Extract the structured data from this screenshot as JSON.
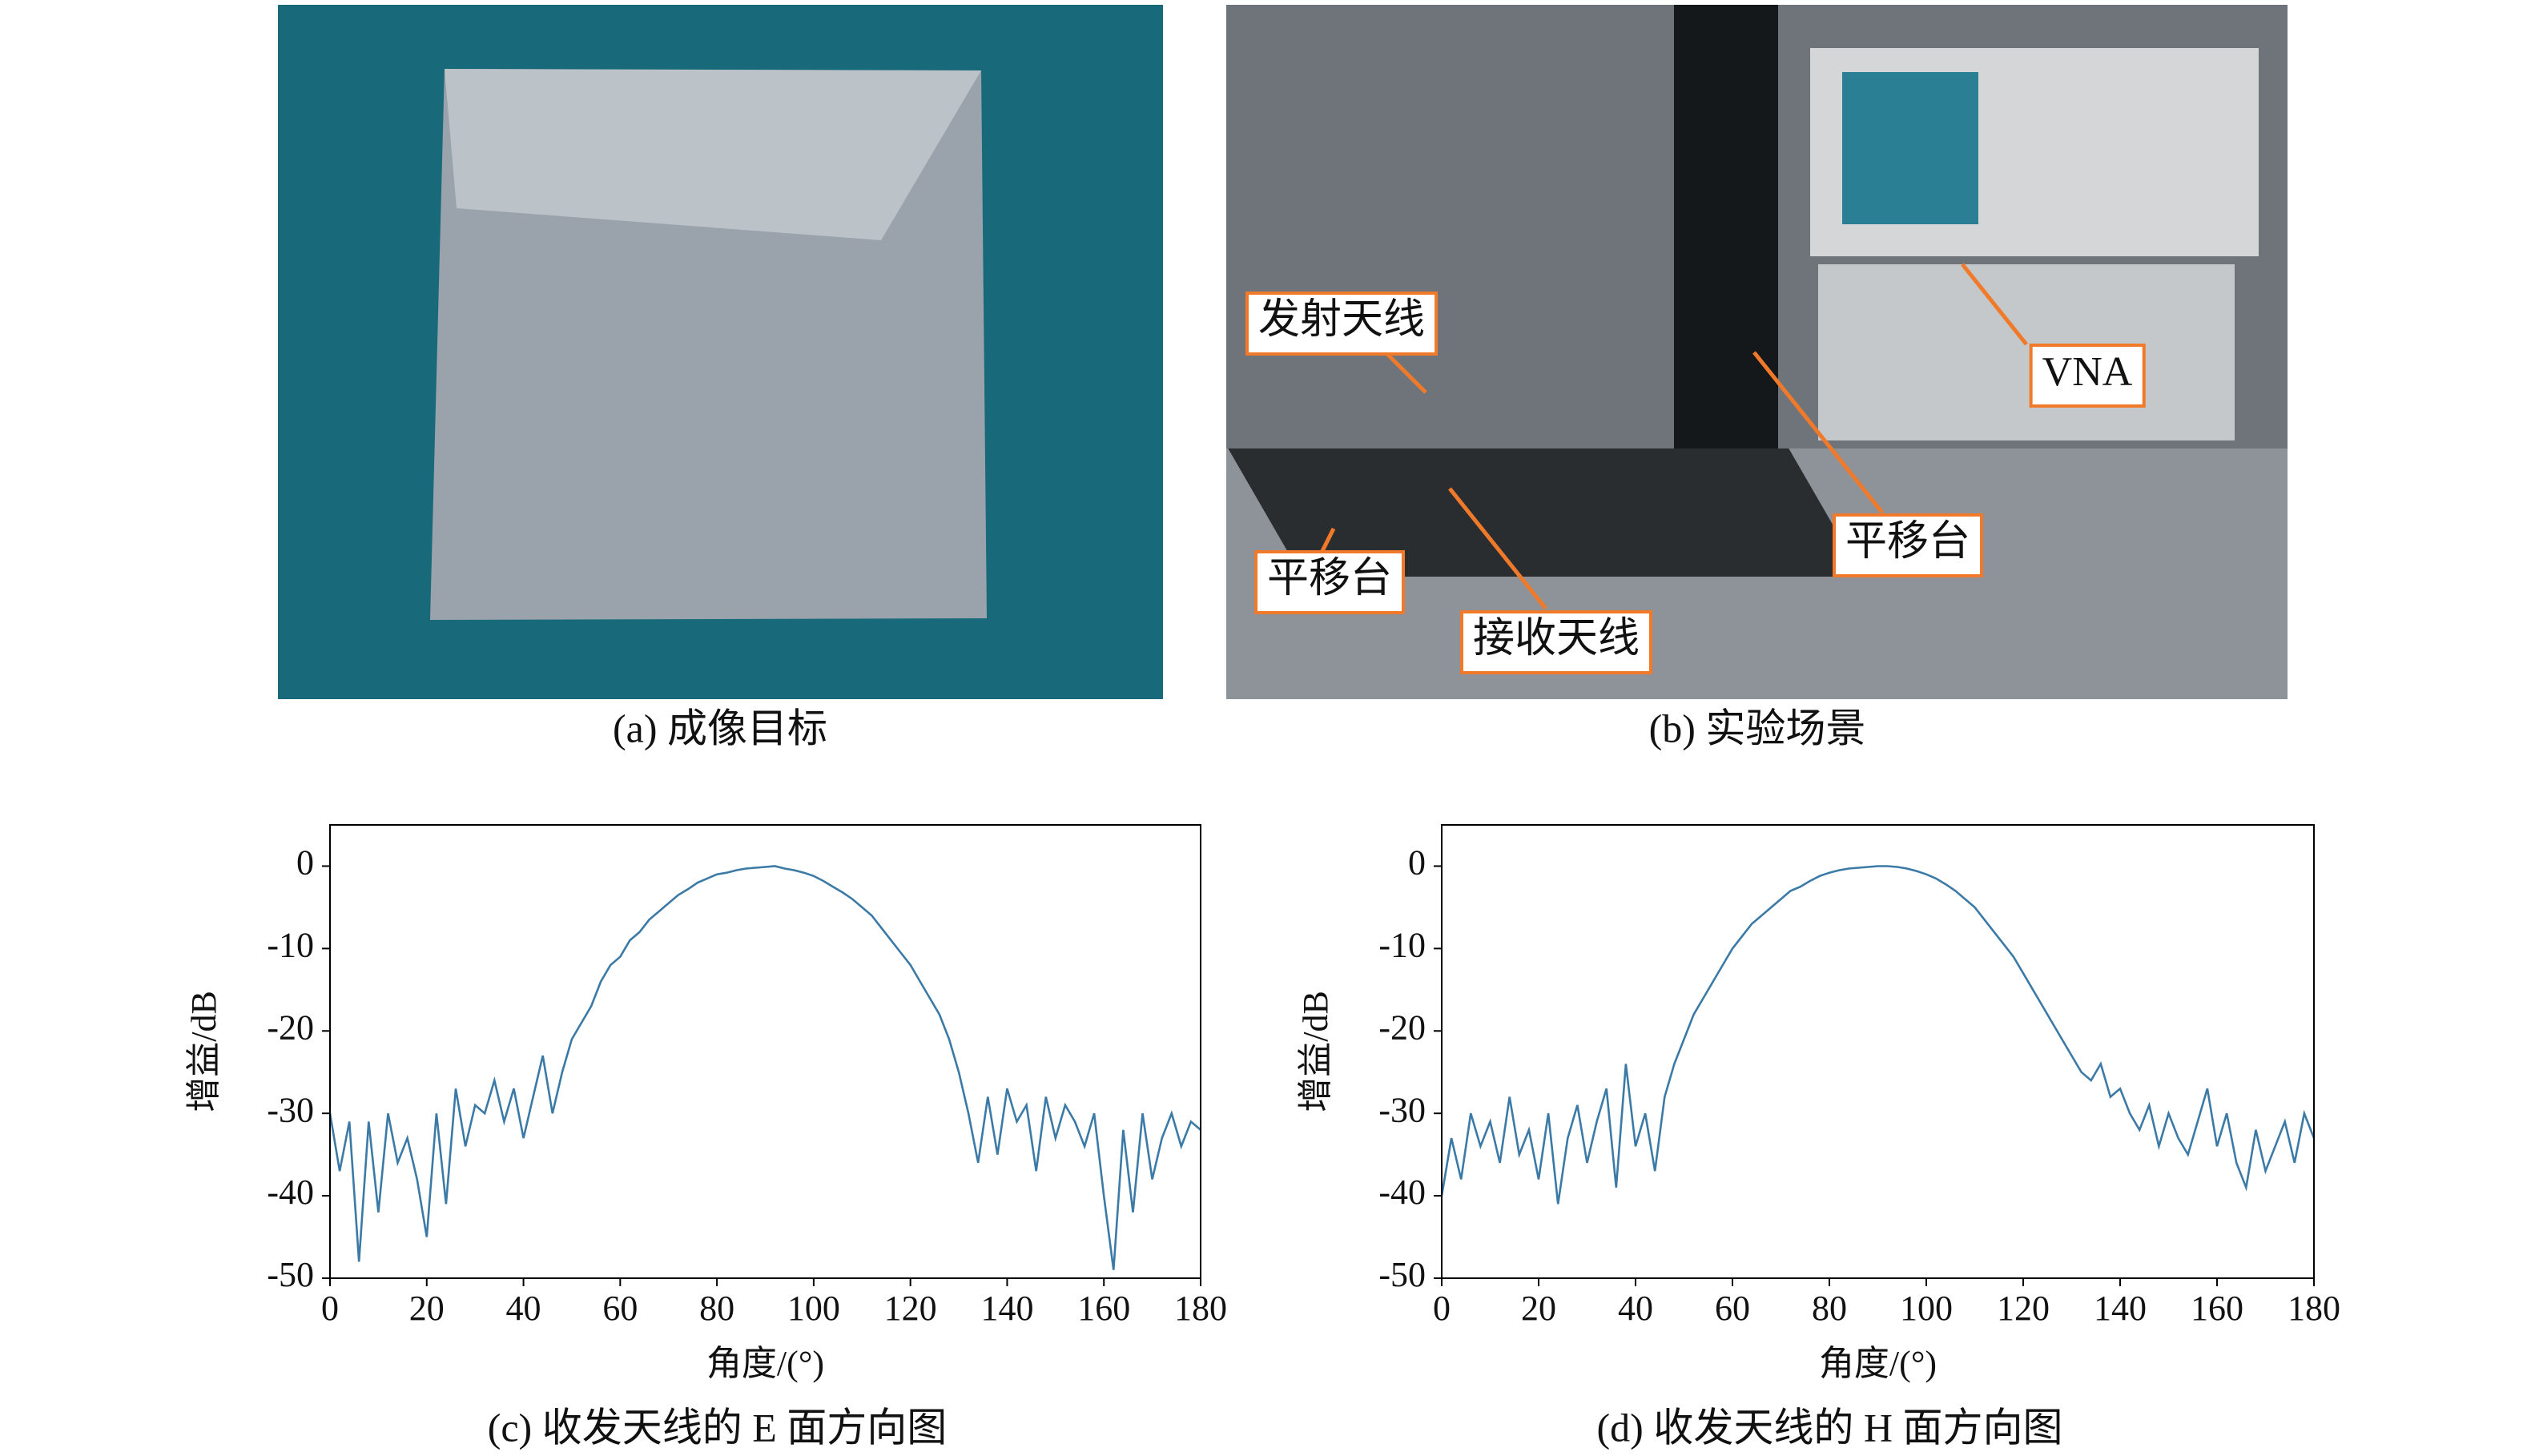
{
  "captions": [
    "(a) 成像目标",
    "(b) 实验场景"
  ],
  "photo_b_labels": [
    "发射天线",
    "VNA",
    "平移台",
    "平移台",
    "接收天线"
  ],
  "chart_data": [
    {
      "type": "line",
      "caption": "(c) 收发天线的 E 面方向图",
      "x_label": "角度/(°)",
      "y_label": "增益/dB",
      "color": "#3b7aa6",
      "x": [
        0,
        2,
        4,
        6,
        8,
        10,
        12,
        14,
        16,
        18,
        20,
        22,
        24,
        26,
        28,
        30,
        32,
        34,
        36,
        38,
        40,
        42,
        44,
        46,
        48,
        50,
        52,
        54,
        56,
        58,
        60,
        62,
        64,
        66,
        68,
        70,
        72,
        74,
        76,
        78,
        80,
        82,
        84,
        86,
        88,
        90,
        92,
        94,
        96,
        98,
        100,
        102,
        104,
        106,
        108,
        110,
        112,
        114,
        116,
        118,
        120,
        122,
        124,
        126,
        128,
        130,
        132,
        134,
        136,
        138,
        140,
        142,
        144,
        146,
        148,
        150,
        152,
        154,
        156,
        158,
        160,
        162,
        164,
        166,
        168,
        170,
        172,
        174,
        176,
        178,
        180
      ],
      "values": [
        -30,
        -37,
        -31,
        -48,
        -31,
        -42,
        -30,
        -36,
        -33,
        -38,
        -45,
        -30,
        -41,
        -27,
        -34,
        -29,
        -30,
        -26,
        -31,
        -27,
        -33,
        -28,
        -23,
        -30,
        -25,
        -21,
        -19,
        -17,
        -14,
        -12,
        -11,
        -9,
        -8,
        -6.5,
        -5.5,
        -4.5,
        -3.5,
        -2.8,
        -2,
        -1.5,
        -1,
        -0.8,
        -0.5,
        -0.3,
        -0.2,
        -0.1,
        0,
        -0.3,
        -0.5,
        -0.8,
        -1.2,
        -1.8,
        -2.5,
        -3.2,
        -4,
        -5,
        -6,
        -7.5,
        -9,
        -10.5,
        -12,
        -14,
        -16,
        -18,
        -21,
        -25,
        -30,
        -36,
        -28,
        -35,
        -27,
        -31,
        -29,
        -37,
        -28,
        -33,
        -29,
        -31,
        -34,
        -30,
        -40,
        -49,
        -32,
        -42,
        -30,
        -38,
        -33,
        -30,
        -34,
        -31,
        -32
      ],
      "xlim": [
        0,
        180
      ],
      "ylim": [
        -50,
        5
      ],
      "xticks": [
        0,
        20,
        40,
        60,
        80,
        100,
        120,
        140,
        160,
        180
      ],
      "yticks": [
        0,
        -10,
        -20,
        -30,
        -40,
        -50
      ]
    },
    {
      "type": "line",
      "caption": "(d) 收发天线的 H 面方向图",
      "x_label": "角度/(°)",
      "y_label": "增益/dB",
      "color": "#3b7aa6",
      "x": [
        0,
        2,
        4,
        6,
        8,
        10,
        12,
        14,
        16,
        18,
        20,
        22,
        24,
        26,
        28,
        30,
        32,
        34,
        36,
        38,
        40,
        42,
        44,
        46,
        48,
        50,
        52,
        54,
        56,
        58,
        60,
        62,
        64,
        66,
        68,
        70,
        72,
        74,
        76,
        78,
        80,
        82,
        84,
        86,
        88,
        90,
        92,
        94,
        96,
        98,
        100,
        102,
        104,
        106,
        108,
        110,
        112,
        114,
        116,
        118,
        120,
        122,
        124,
        126,
        128,
        130,
        132,
        134,
        136,
        138,
        140,
        142,
        144,
        146,
        148,
        150,
        152,
        154,
        156,
        158,
        160,
        162,
        164,
        166,
        168,
        170,
        172,
        174,
        176,
        178,
        180
      ],
      "values": [
        -40,
        -33,
        -38,
        -30,
        -34,
        -31,
        -36,
        -28,
        -35,
        -32,
        -38,
        -30,
        -41,
        -33,
        -29,
        -36,
        -31,
        -27,
        -39,
        -24,
        -34,
        -30,
        -37,
        -28,
        -24,
        -21,
        -18,
        -16,
        -14,
        -12,
        -10,
        -8.5,
        -7,
        -6,
        -5,
        -4,
        -3,
        -2.5,
        -1.8,
        -1.2,
        -0.8,
        -0.5,
        -0.3,
        -0.2,
        -0.1,
        0,
        0,
        -0.1,
        -0.3,
        -0.6,
        -1,
        -1.5,
        -2.2,
        -3,
        -4,
        -5,
        -6.5,
        -8,
        -9.5,
        -11,
        -13,
        -15,
        -17,
        -19,
        -21,
        -23,
        -25,
        -26,
        -24,
        -28,
        -27,
        -30,
        -32,
        -29,
        -34,
        -30,
        -33,
        -35,
        -31,
        -27,
        -34,
        -30,
        -36,
        -39,
        -32,
        -37,
        -34,
        -31,
        -36,
        -30,
        -33
      ],
      "xlim": [
        0,
        180
      ],
      "ylim": [
        -50,
        5
      ],
      "xticks": [
        0,
        20,
        40,
        60,
        80,
        100,
        120,
        140,
        160,
        180
      ],
      "yticks": [
        0,
        -10,
        -20,
        -30,
        -40,
        -50
      ]
    }
  ]
}
